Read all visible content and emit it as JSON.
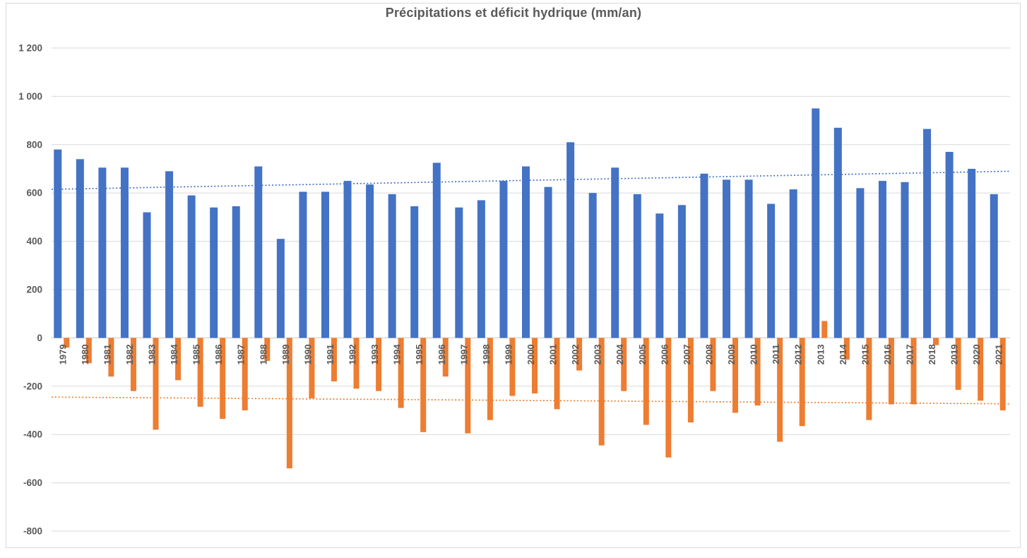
{
  "chart_data": {
    "type": "bar",
    "title": "Précipitations et déficit hydrique (mm/an)",
    "categories": [
      "1979",
      "1980",
      "1981",
      "1982",
      "1983",
      "1984",
      "1985",
      "1986",
      "1987",
      "1988",
      "1989",
      "1990",
      "1991",
      "1992",
      "1993",
      "1994",
      "1995",
      "1996",
      "1997",
      "1998",
      "1999",
      "2000",
      "2001",
      "2002",
      "2003",
      "2004",
      "2005",
      "2006",
      "2007",
      "2008",
      "2009",
      "2010",
      "2011",
      "2012",
      "2013",
      "2014",
      "2015",
      "2016",
      "2017",
      "2018",
      "2019",
      "2020",
      "2021"
    ],
    "series": [
      {
        "name": "Précipitations",
        "color": "#4472C4",
        "values": [
          780,
          740,
          705,
          705,
          520,
          690,
          590,
          540,
          545,
          710,
          410,
          605,
          605,
          650,
          635,
          595,
          545,
          725,
          540,
          570,
          650,
          710,
          625,
          810,
          600,
          705,
          595,
          515,
          550,
          680,
          655,
          655,
          555,
          615,
          950,
          870,
          620,
          650,
          645,
          865,
          770,
          700,
          595
        ]
      },
      {
        "name": "Déficit hydrique",
        "color": "#ED7D31",
        "values": [
          -40,
          -105,
          -160,
          -220,
          -380,
          -175,
          -285,
          -335,
          -300,
          -95,
          -540,
          -250,
          -180,
          -210,
          -220,
          -290,
          -390,
          -160,
          -395,
          -340,
          -240,
          -230,
          -295,
          -135,
          -445,
          -220,
          -360,
          -495,
          -350,
          -220,
          -310,
          -280,
          -430,
          -365,
          70,
          -90,
          -340,
          -275,
          -275,
          -30,
          -215,
          -260,
          -300
        ]
      }
    ],
    "trendlines": [
      {
        "series": "Précipitations",
        "color": "#4472C4",
        "style": "dotted",
        "start_value": 615,
        "end_value": 690
      },
      {
        "series": "Déficit hydrique",
        "color": "#ED7D31",
        "style": "dotted",
        "start_value": -245,
        "end_value": -273
      }
    ],
    "y_axis": {
      "min": -800,
      "max": 1200,
      "step": 200,
      "tick_labels": [
        "1 200",
        "1 000",
        "800",
        "600",
        "400",
        "200",
        "0",
        "-200",
        "-400",
        "-600",
        "-800"
      ]
    },
    "x_axis": {
      "label_rotation": "vertical-up"
    },
    "grid": true,
    "legend": "none",
    "colors": {
      "bar_precipitation": "#4472C4",
      "bar_deficit": "#ED7D31",
      "gridline": "#D9D9D9",
      "zero_line": "#C6C6C6",
      "axis_text": "#595959",
      "frame_border": "#D9D9D9",
      "background": "#FFFFFF"
    }
  }
}
